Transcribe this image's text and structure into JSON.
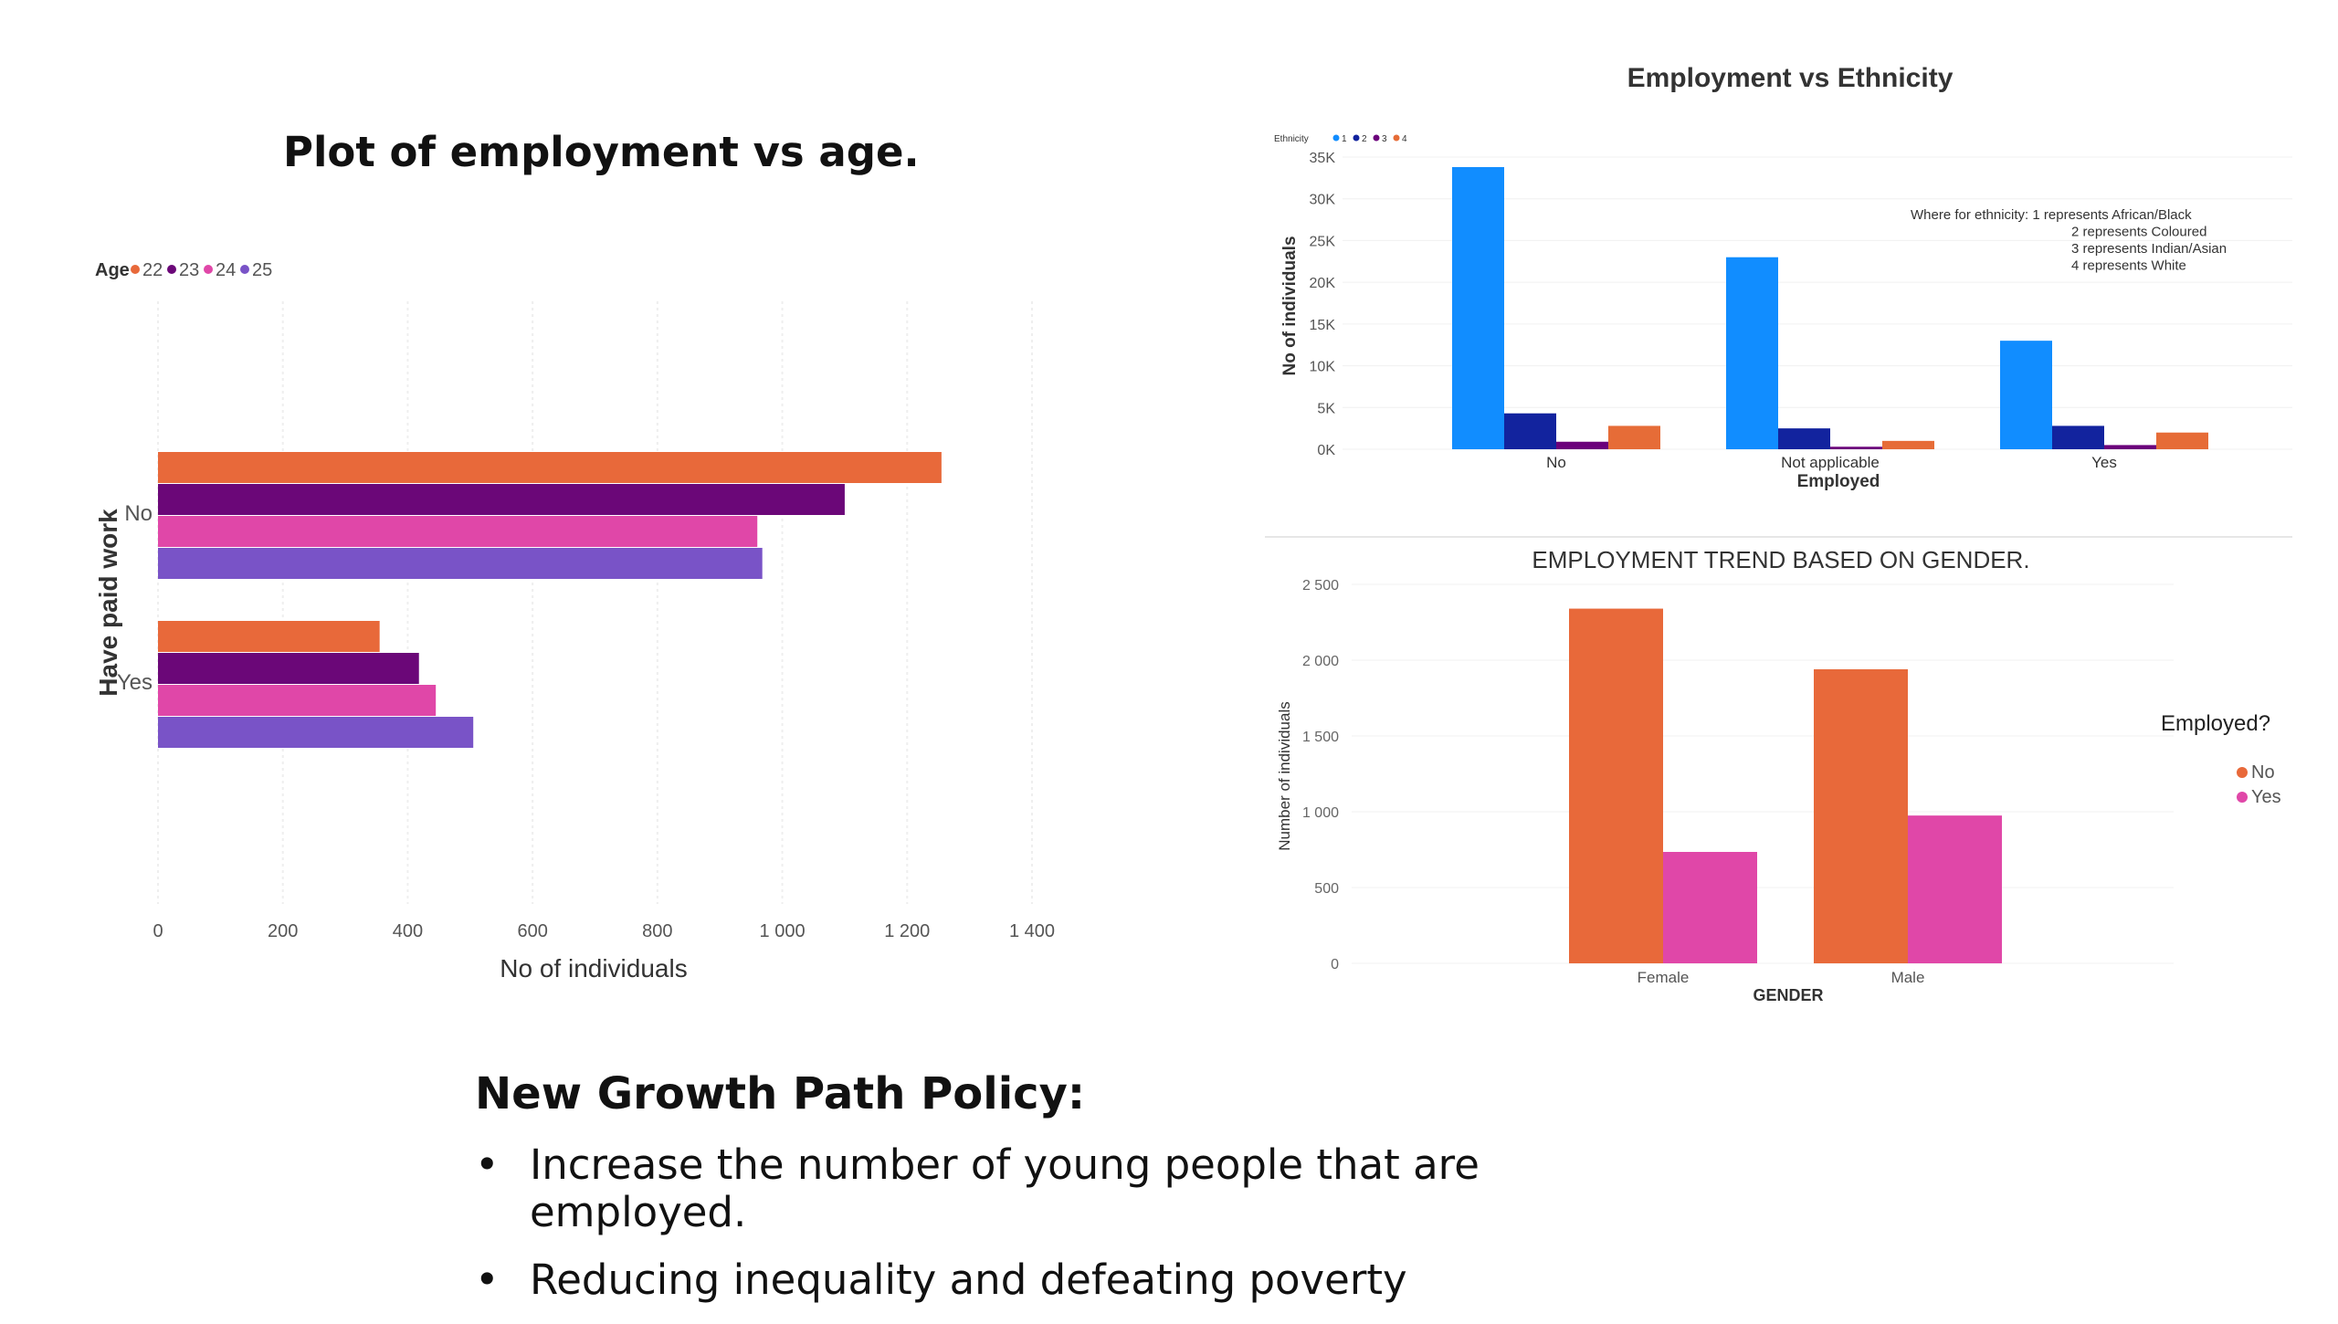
{
  "left_title": "Plot of employment vs age.",
  "policy": {
    "title": "New Growth Path Policy:",
    "bullet_glyph": "•",
    "bullets": [
      "Increase the number of young people that are employed.",
      "Reducing inequality and defeating poverty"
    ]
  },
  "chart_data": [
    {
      "type": "bar",
      "orientation": "horizontal",
      "title": "Plot of employment vs age.",
      "xlabel": "No of individuals",
      "ylabel": "Have paid work",
      "legend_title": "Age",
      "legend_position": "top-left",
      "categories": [
        "No",
        "Yes"
      ],
      "xlim": [
        0,
        1400
      ],
      "xticks": [
        "0",
        "200",
        "400",
        "600",
        "800",
        "1 000",
        "1 200",
        "1 400"
      ],
      "xtick_values": [
        0,
        200,
        400,
        600,
        800,
        1000,
        1200,
        1400
      ],
      "series": [
        {
          "name": "22",
          "color": "#E8693A",
          "values": [
            1255,
            355
          ]
        },
        {
          "name": "23",
          "color": "#6B0778",
          "values": [
            1100,
            418
          ]
        },
        {
          "name": "24",
          "color": "#E047A8",
          "values": [
            960,
            445
          ]
        },
        {
          "name": "25",
          "color": "#7953C7",
          "values": [
            968,
            505
          ]
        }
      ]
    },
    {
      "type": "bar",
      "title": "Employment vs  Ethnicity",
      "xlabel": "Employed",
      "ylabel": "No of individuals",
      "legend_title": "Ethnicity",
      "legend_position": "top-left",
      "categories": [
        "No",
        "Not applicable",
        "Yes"
      ],
      "ylim": [
        0,
        35000
      ],
      "yticks": [
        "0K",
        "5K",
        "10K",
        "15K",
        "20K",
        "25K",
        "30K",
        "35K"
      ],
      "ytick_values": [
        0,
        5000,
        10000,
        15000,
        20000,
        25000,
        30000,
        35000
      ],
      "note": [
        "Where for ethnicity: 1 represents African/Black",
        "2 represents Coloured",
        "3 represents Indian/Asian",
        "4 represents White"
      ],
      "series": [
        {
          "name": "1",
          "color": "#118DFF",
          "values": [
            33800,
            23000,
            13000
          ]
        },
        {
          "name": "2",
          "color": "#12239E",
          "values": [
            4300,
            2500,
            2800
          ]
        },
        {
          "name": "3",
          "color": "#6B007B",
          "values": [
            900,
            300,
            500
          ]
        },
        {
          "name": "4",
          "color": "#E66C37",
          "values": [
            2800,
            1000,
            2000
          ]
        }
      ]
    },
    {
      "type": "bar",
      "title": "EMPLOYMENT TREND BASED ON GENDER.",
      "xlabel": "GENDER",
      "ylabel": "Number of individuals",
      "legend_title": "Employed?",
      "legend_position": "right",
      "categories": [
        "Female",
        "Male"
      ],
      "ylim": [
        0,
        2500
      ],
      "yticks": [
        "0",
        "500",
        "1 000",
        "1 500",
        "2 000",
        "2 500"
      ],
      "ytick_values": [
        0,
        500,
        1000,
        1500,
        2000,
        2500
      ],
      "series": [
        {
          "name": "No",
          "color": "#E8693A",
          "values": [
            2340,
            1940
          ]
        },
        {
          "name": "Yes",
          "color": "#E047A8",
          "values": [
            735,
            975
          ]
        }
      ]
    }
  ]
}
